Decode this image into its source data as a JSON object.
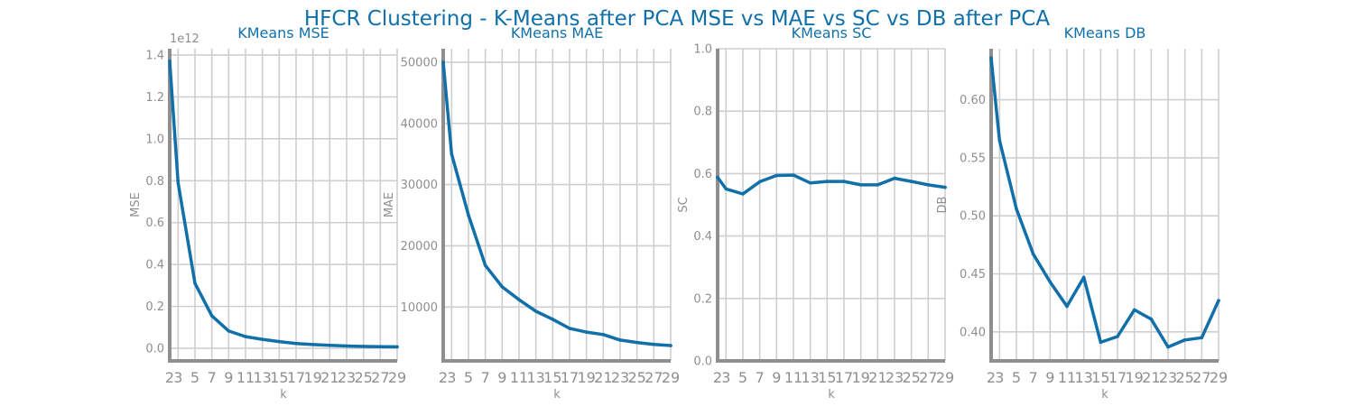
{
  "figure": {
    "title": "HFCR Clustering - K-Means after PCA MSE vs MAE vs SC vs DB after PCA"
  },
  "colors": {
    "series": "#1170aa",
    "title": "#1170aa",
    "axis": "#8f8f8f",
    "grid": "#cfcfcf"
  },
  "chart_data": [
    {
      "type": "line",
      "title": "KMeans MSE",
      "xlabel": "k",
      "ylabel": "MSE",
      "offset_text": "1e12",
      "x": [
        2,
        3,
        5,
        7,
        9,
        11,
        13,
        15,
        17,
        19,
        21,
        23,
        25,
        27,
        29
      ],
      "x_ticks": [
        "2",
        "3",
        "5",
        "7",
        "9",
        "11",
        "13",
        "15",
        "17",
        "19",
        "21",
        "23",
        "25",
        "27",
        "29"
      ],
      "series": [
        {
          "values": [
            1.37,
            0.79,
            0.31,
            0.155,
            0.083,
            0.056,
            0.043,
            0.032,
            0.023,
            0.018,
            0.014,
            0.011,
            0.009,
            0.008,
            0.007
          ]
        }
      ],
      "y_ticks": [
        0.0,
        0.2,
        0.4,
        0.6,
        0.8,
        1.0,
        1.2,
        1.4
      ],
      "y_tick_labels": [
        "0.0",
        "0.2",
        "0.4",
        "0.6",
        "0.8",
        "1.0",
        "1.2",
        "1.4"
      ],
      "xlim": [
        2,
        29
      ],
      "ylim": [
        -0.06,
        1.43
      ],
      "grid": true
    },
    {
      "type": "line",
      "title": "KMeans MAE",
      "xlabel": "k",
      "ylabel": "MAE",
      "x": [
        2,
        3,
        5,
        7,
        9,
        11,
        13,
        15,
        17,
        19,
        21,
        23,
        25,
        27,
        29
      ],
      "x_ticks": [
        "2",
        "3",
        "5",
        "7",
        "9",
        "11",
        "13",
        "15",
        "17",
        "19",
        "21",
        "23",
        "25",
        "27",
        "29"
      ],
      "series": [
        {
          "values": [
            50000,
            35000,
            25000,
            16800,
            13300,
            11200,
            9300,
            8000,
            6500,
            5900,
            5500,
            4600,
            4200,
            3900,
            3700
          ]
        }
      ],
      "y_ticks": [
        10000,
        20000,
        30000,
        40000,
        50000
      ],
      "y_tick_labels": [
        "10000",
        "20000",
        "30000",
        "40000",
        "50000"
      ],
      "xlim": [
        2,
        29
      ],
      "ylim": [
        1200,
        52200
      ],
      "grid": true
    },
    {
      "type": "line",
      "title": "KMeans SC",
      "xlabel": "k",
      "ylabel": "SC",
      "x": [
        2,
        3,
        5,
        7,
        9,
        11,
        13,
        15,
        17,
        19,
        21,
        23,
        25,
        27,
        29
      ],
      "x_ticks": [
        "2",
        "3",
        "5",
        "7",
        "9",
        "11",
        "13",
        "15",
        "17",
        "19",
        "21",
        "23",
        "25",
        "27",
        "29"
      ],
      "series": [
        {
          "values": [
            0.588,
            0.551,
            0.535,
            0.574,
            0.594,
            0.595,
            0.57,
            0.575,
            0.575,
            0.564,
            0.564,
            0.585,
            0.575,
            0.564,
            0.556
          ]
        }
      ],
      "y_ticks": [
        0.0,
        0.2,
        0.4,
        0.6,
        0.8,
        1.0
      ],
      "y_tick_labels": [
        "0.0",
        "0.2",
        "0.4",
        "0.6",
        "0.8",
        "1.0"
      ],
      "xlim": [
        2,
        29
      ],
      "ylim": [
        0.0,
        1.0
      ],
      "grid": true
    },
    {
      "type": "line",
      "title": "KMeans DB",
      "xlabel": "k",
      "ylabel": "DB",
      "x": [
        2,
        3,
        5,
        7,
        9,
        11,
        13,
        15,
        17,
        19,
        21,
        23,
        25,
        27,
        29
      ],
      "x_ticks": [
        "2",
        "3",
        "5",
        "7",
        "9",
        "11",
        "13",
        "15",
        "17",
        "19",
        "21",
        "23",
        "25",
        "27",
        "29"
      ],
      "series": [
        {
          "values": [
            0.636,
            0.565,
            0.506,
            0.467,
            0.443,
            0.422,
            0.447,
            0.391,
            0.396,
            0.419,
            0.411,
            0.387,
            0.393,
            0.395,
            0.427
          ]
        }
      ],
      "y_ticks": [
        0.4,
        0.45,
        0.5,
        0.55,
        0.6
      ],
      "y_tick_labels": [
        "0.40",
        "0.45",
        "0.50",
        "0.55",
        "0.60"
      ],
      "xlim": [
        2,
        29
      ],
      "ylim": [
        0.375,
        0.644
      ],
      "grid": true
    }
  ]
}
